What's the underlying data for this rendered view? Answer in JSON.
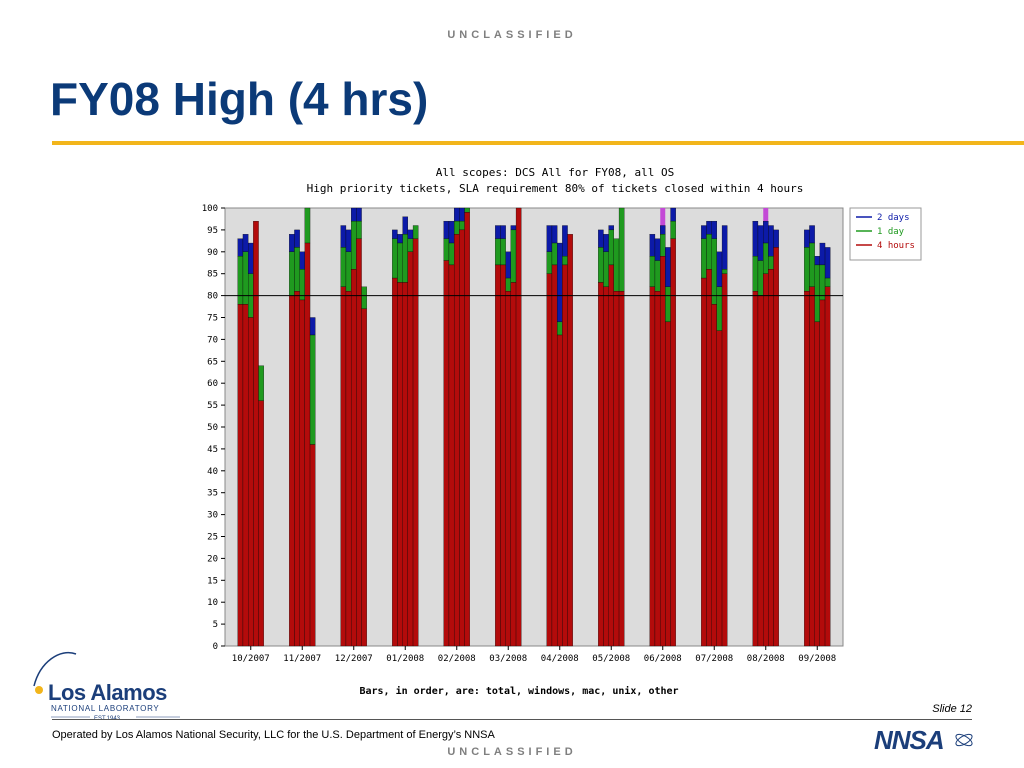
{
  "classification": "UNCLASSIFIED",
  "slide_title": "FY08 High (4 hrs)",
  "slide_number": "Slide 12",
  "footer_text": "Operated by Los Alamos National Security, LLC for the U.S. Department of Energy’s NNSA",
  "logo": {
    "lanl_name": "Los Alamos",
    "lanl_sub": "NATIONAL LABORATORY",
    "lanl_est": "EST.1943",
    "nnsa_text": "NNSA"
  },
  "colors": {
    "title_blue": "#0b3a78",
    "accent_gold": "#f2b51b",
    "bar_red": "#b30b0b",
    "bar_green": "#1f9a1f",
    "bar_blue": "#0c1aa8",
    "plot_bg": "#dcdcdc",
    "marker_magenta": "#c34ad6"
  },
  "chart_data": {
    "type": "bar",
    "stacked": true,
    "title": "All scopes: DCS All for FY08, all OS",
    "subtitle": "High priority tickets, SLA requirement 80% of tickets closed within 4 hours",
    "footnote": "Bars, in order, are: total, windows, mac, unix, other",
    "categories": [
      "10/2007",
      "11/2007",
      "12/2007",
      "01/2008",
      "02/2008",
      "03/2008",
      "04/2008",
      "05/2008",
      "06/2008",
      "07/2008",
      "08/2008",
      "09/2008"
    ],
    "bar_order": [
      "total",
      "windows",
      "mac",
      "unix",
      "other"
    ],
    "ylim": [
      0,
      100
    ],
    "yticks": [
      0,
      5,
      10,
      15,
      20,
      25,
      30,
      35,
      40,
      45,
      50,
      55,
      60,
      65,
      70,
      75,
      80,
      85,
      90,
      95,
      100
    ],
    "reference_line": 80,
    "legend_position": "right",
    "series": [
      {
        "name": "2 days",
        "color": "#0c1aa8",
        "values": [
          [
            93,
            94,
            92,
            97,
            64
          ],
          [
            94,
            95,
            90,
            100,
            75
          ],
          [
            96,
            95,
            100,
            100,
            82
          ],
          [
            95,
            94,
            98,
            95,
            96
          ],
          [
            97,
            97,
            100,
            100,
            100
          ],
          [
            96,
            96,
            90,
            96,
            100
          ],
          [
            96,
            96,
            92,
            96,
            94
          ],
          [
            95,
            94,
            96,
            93,
            100
          ],
          [
            94,
            93,
            96,
            91,
            100
          ],
          [
            96,
            97,
            97,
            90,
            96
          ],
          [
            97,
            96,
            97,
            96,
            95
          ],
          [
            95,
            96,
            89,
            92,
            91
          ]
        ]
      },
      {
        "name": "1 day",
        "color": "#1f9a1f",
        "values": [
          [
            89,
            90,
            85,
            97,
            64
          ],
          [
            90,
            91,
            86,
            100,
            71
          ],
          [
            91,
            90,
            97,
            97,
            82
          ],
          [
            93,
            92,
            94,
            93,
            96
          ],
          [
            93,
            92,
            97,
            97,
            100
          ],
          [
            93,
            93,
            84,
            95,
            100
          ],
          [
            90,
            92,
            74,
            89,
            94
          ],
          [
            91,
            90,
            95,
            93,
            100
          ],
          [
            89,
            88,
            94,
            82,
            97
          ],
          [
            93,
            94,
            93,
            82,
            86
          ],
          [
            89,
            88,
            92,
            89,
            91
          ],
          [
            91,
            92,
            87,
            87,
            84
          ]
        ]
      },
      {
        "name": "4 hours",
        "color": "#b30b0b",
        "values": [
          [
            78,
            78,
            75,
            97,
            56
          ],
          [
            80,
            81,
            79,
            92,
            46
          ],
          [
            82,
            81,
            86,
            93,
            77
          ],
          [
            84,
            83,
            83,
            90,
            93
          ],
          [
            88,
            87,
            94,
            95,
            99
          ],
          [
            87,
            87,
            81,
            83,
            100
          ],
          [
            85,
            87,
            71,
            87,
            94
          ],
          [
            83,
            82,
            87,
            81,
            81
          ],
          [
            82,
            81,
            89,
            74,
            93
          ],
          [
            84,
            86,
            78,
            72,
            85
          ],
          [
            81,
            80,
            85,
            86,
            91
          ],
          [
            81,
            82,
            74,
            79,
            82
          ]
        ]
      }
    ],
    "highlight_markers": [
      "06/2008",
      "08/2008"
    ]
  }
}
